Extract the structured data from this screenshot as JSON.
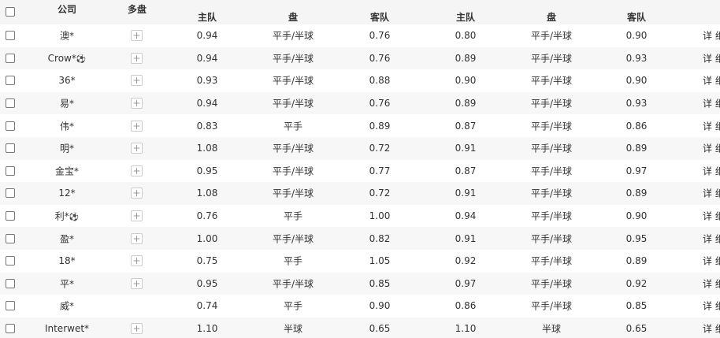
{
  "header": {
    "company": "公司",
    "multi": "多盘",
    "home1": "主队",
    "line1": "盘",
    "away1": "客队",
    "home2": "主队",
    "line2": "盘",
    "away2": "客队"
  },
  "detail_label": "详 细",
  "rows": [
    {
      "company": "澳*",
      "ball": false,
      "plus": true,
      "h1": "0.94",
      "l1": "平手/半球",
      "a1": "0.76",
      "h2": "0.80",
      "l2": "平手/半球",
      "a2": "0.90"
    },
    {
      "company": "Crow*",
      "ball": true,
      "plus": true,
      "h1": "0.94",
      "l1": "平手/半球",
      "a1": "0.76",
      "h2": "0.89",
      "l2": "平手/半球",
      "a2": "0.93"
    },
    {
      "company": "36*",
      "ball": false,
      "plus": true,
      "h1": "0.93",
      "l1": "平手/半球",
      "a1": "0.88",
      "h2": "0.90",
      "l2": "平手/半球",
      "a2": "0.90"
    },
    {
      "company": "易*",
      "ball": false,
      "plus": true,
      "h1": "0.94",
      "l1": "平手/半球",
      "a1": "0.76",
      "h2": "0.89",
      "l2": "平手/半球",
      "a2": "0.93"
    },
    {
      "company": "伟*",
      "ball": false,
      "plus": true,
      "h1": "0.83",
      "l1": "平手",
      "a1": "0.89",
      "h2": "0.87",
      "l2": "平手/半球",
      "a2": "0.86"
    },
    {
      "company": "明*",
      "ball": false,
      "plus": true,
      "h1": "1.08",
      "l1": "平手/半球",
      "a1": "0.72",
      "h2": "0.91",
      "l2": "平手/半球",
      "a2": "0.89"
    },
    {
      "company": "金宝*",
      "ball": false,
      "plus": true,
      "h1": "0.95",
      "l1": "平手/半球",
      "a1": "0.77",
      "h2": "0.87",
      "l2": "平手/半球",
      "a2": "0.97"
    },
    {
      "company": "12*",
      "ball": false,
      "plus": true,
      "h1": "1.08",
      "l1": "平手/半球",
      "a1": "0.72",
      "h2": "0.91",
      "l2": "平手/半球",
      "a2": "0.89"
    },
    {
      "company": "利*",
      "ball": true,
      "plus": true,
      "h1": "0.76",
      "l1": "平手",
      "a1": "1.00",
      "h2": "0.94",
      "l2": "平手/半球",
      "a2": "0.90"
    },
    {
      "company": "盈*",
      "ball": false,
      "plus": true,
      "h1": "1.00",
      "l1": "平手/半球",
      "a1": "0.82",
      "h2": "0.91",
      "l2": "平手/半球",
      "a2": "0.95"
    },
    {
      "company": "18*",
      "ball": false,
      "plus": true,
      "h1": "0.75",
      "l1": "平手",
      "a1": "1.05",
      "h2": "0.92",
      "l2": "平手/半球",
      "a2": "0.89"
    },
    {
      "company": "平*",
      "ball": false,
      "plus": true,
      "h1": "0.95",
      "l1": "平手/半球",
      "a1": "0.85",
      "h2": "0.97",
      "l2": "平手/半球",
      "a2": "0.92"
    },
    {
      "company": "威*",
      "ball": false,
      "plus": false,
      "h1": "0.74",
      "l1": "平手",
      "a1": "0.90",
      "h2": "0.86",
      "l2": "平手/半球",
      "a2": "0.85"
    },
    {
      "company": "Interwet*",
      "ball": false,
      "plus": true,
      "h1": "1.10",
      "l1": "半球",
      "a1": "0.65",
      "h2": "1.10",
      "l2": "半球",
      "a2": "0.65"
    }
  ]
}
